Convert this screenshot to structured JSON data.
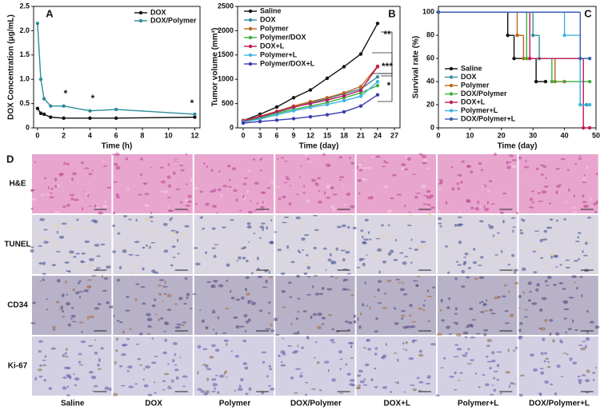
{
  "chart_data": [
    {
      "type": "line",
      "title": "A",
      "x_label": "Time (h)",
      "y_label": "DOX Concentration (μg/mL)",
      "x": [
        0,
        0.25,
        0.5,
        1,
        2,
        4,
        6,
        12
      ],
      "series": [
        {
          "name": "DOX",
          "color": "#111111",
          "values": [
            0.4,
            0.3,
            0.28,
            0.22,
            0.2,
            0.2,
            0.2,
            0.22
          ]
        },
        {
          "name": "DOX/Polymer",
          "color": "#2e8b9a",
          "values": [
            2.15,
            1.0,
            0.6,
            0.45,
            0.45,
            0.35,
            0.38,
            0.28
          ]
        }
      ],
      "xlim": [
        -0.3,
        12.4
      ],
      "xticks": [
        0,
        2,
        4,
        6,
        8,
        10,
        12
      ],
      "ylim": [
        0,
        2.5
      ],
      "yticks": [
        0,
        {
          "value": 0.5,
          "label": "0.5"
        },
        {
          "value": 1,
          "label": "1.0"
        },
        {
          "value": 1.5,
          "label": "1.5"
        },
        {
          "value": 2,
          "label": "2.0"
        },
        {
          "value": 2.5,
          "label": "2.5"
        }
      ],
      "annotations": [
        "*",
        "*",
        "*"
      ],
      "legend": "top-right"
    },
    {
      "type": "line",
      "title": "B",
      "x_label": "Time (day)",
      "y_label": "Tumor volume (mm³)",
      "x": [
        0,
        3,
        6,
        9,
        12,
        15,
        18,
        21,
        24
      ],
      "series": [
        {
          "name": "Saline",
          "color": "#111111",
          "values": [
            150,
            280,
            430,
            620,
            780,
            1020,
            1260,
            1520,
            2150
          ]
        },
        {
          "name": "DOX",
          "color": "#3a8fa0",
          "values": [
            140,
            220,
            320,
            420,
            520,
            600,
            700,
            800,
            1050
          ]
        },
        {
          "name": "Polymer",
          "color": "#b8681e",
          "values": [
            150,
            240,
            340,
            450,
            540,
            620,
            720,
            850,
            1270
          ]
        },
        {
          "name": "Polymer/DOX",
          "color": "#3cb03c",
          "values": [
            130,
            200,
            300,
            380,
            450,
            520,
            620,
            720,
            870
          ]
        },
        {
          "name": "DOX+L",
          "color": "#c2185b",
          "values": [
            140,
            230,
            330,
            430,
            500,
            570,
            660,
            770,
            1260
          ]
        },
        {
          "name": "Polymer+L",
          "color": "#3fb4e0",
          "values": [
            120,
            180,
            270,
            350,
            420,
            480,
            560,
            650,
            950
          ]
        },
        {
          "name": "Polymer/DOX+L",
          "color": "#3a3ab0",
          "values": [
            100,
            130,
            160,
            190,
            230,
            270,
            330,
            450,
            680
          ]
        }
      ],
      "xlim": [
        -1,
        28
      ],
      "xticks": [
        0,
        3,
        6,
        9,
        12,
        15,
        18,
        21,
        24,
        27
      ],
      "ylim": [
        0,
        2500
      ],
      "yticks": [
        0,
        500,
        1000,
        1500,
        2000,
        2500
      ],
      "annotations": [
        "**",
        "***",
        "*"
      ],
      "legend": "top-left"
    },
    {
      "type": "step",
      "title": "C",
      "x_label": "Time (day)",
      "y_label": "Survival rate (%)",
      "series": [
        {
          "name": "Saline",
          "color": "#111111",
          "x": [
            0,
            22,
            24,
            31,
            34
          ],
          "values": [
            100,
            80,
            60,
            40,
            40
          ]
        },
        {
          "name": "DOX",
          "color": "#3a8fa0",
          "x": [
            0,
            30,
            32,
            45,
            47
          ],
          "values": [
            100,
            80,
            60,
            20,
            20
          ]
        },
        {
          "name": "Polymer",
          "color": "#b8681e",
          "x": [
            0,
            25,
            27,
            37,
            40
          ],
          "values": [
            100,
            80,
            60,
            40,
            40
          ]
        },
        {
          "name": "DOX/Polymer",
          "color": "#3cb03c",
          "x": [
            0,
            28,
            36,
            48
          ],
          "values": [
            100,
            60,
            40,
            40
          ]
        },
        {
          "name": "DOX+L",
          "color": "#c2185b",
          "x": [
            0,
            29,
            46,
            48
          ],
          "values": [
            100,
            60,
            0,
            0
          ]
        },
        {
          "name": "Polymer+L",
          "color": "#3fb4e0",
          "x": [
            0,
            40,
            45,
            48
          ],
          "values": [
            100,
            80,
            20,
            20
          ]
        },
        {
          "name": "DOX/Polymer+L",
          "color": "#3a5fb0",
          "x": [
            0,
            45,
            48
          ],
          "values": [
            100,
            60,
            60
          ]
        }
      ],
      "xlim": [
        0,
        50
      ],
      "xticks": [
        0,
        10,
        20,
        30,
        40,
        50
      ],
      "ylim": [
        0,
        105
      ],
      "yticks": [
        0,
        20,
        40,
        60,
        80,
        100
      ],
      "legend": "center-left"
    }
  ],
  "panel_d": {
    "label": "D",
    "rows": [
      "H&E",
      "TUNEL",
      "CD34",
      "Ki-67"
    ],
    "columns": [
      "Saline",
      "DOX",
      "Polymer",
      "DOX/Polymer",
      "DOX+L",
      "Polymer+L",
      "DOX/Polymer+L"
    ]
  }
}
